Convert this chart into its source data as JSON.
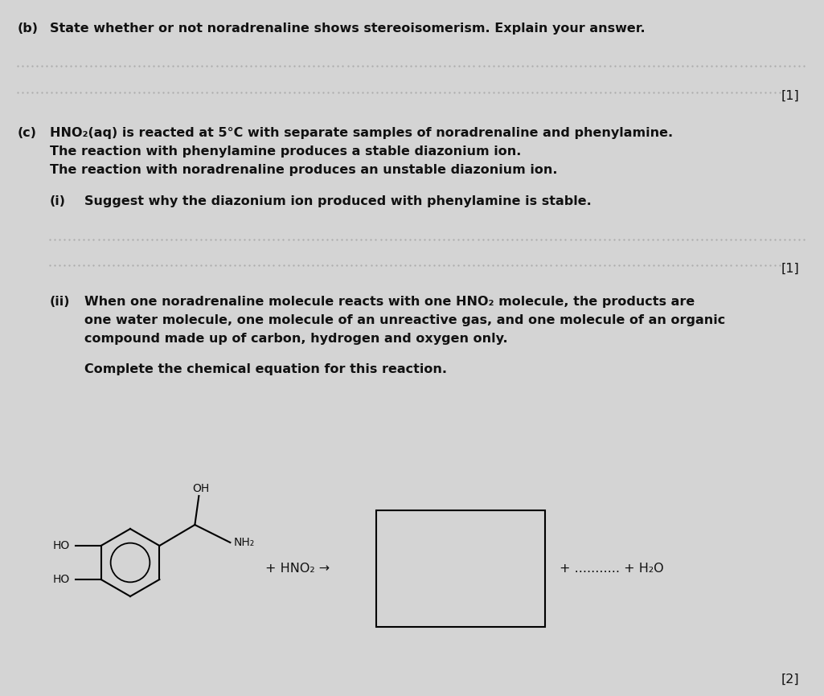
{
  "bg_color": "#d4d4d4",
  "text_color": "#111111",
  "fig_width": 10.25,
  "fig_height": 8.66,
  "dpi": 100,
  "section_b_label": "(b)",
  "section_b_text": "State whether or not noradrenaline shows stereoisomerism. Explain your answer.",
  "mark1_text": "[1]",
  "section_c_label": "(c)",
  "section_c_text1": "HNO₂(aq) is reacted at 5°C with separate samples of noradrenaline and phenylamine.",
  "section_c_text2": "The reaction with phenylamine produces a stable diazonium ion.",
  "section_c_text3": "The reaction with noradrenaline produces an unstable diazonium ion.",
  "section_i_label": "(i)",
  "section_i_text": "Suggest why the diazonium ion produced with phenylamine is stable.",
  "mark1b_text": "[1]",
  "section_ii_label": "(ii)",
  "section_ii_text1": "When one noradrenaline molecule reacts with one HNO₂ molecule, the products are",
  "section_ii_text2": "one water molecule, one molecule of an unreactive gas, and one molecule of an organic",
  "section_ii_text3": "compound made up of carbon, hydrogen and oxygen only.",
  "complete_text": "Complete the chemical equation for this reaction.",
  "plus_hno2_text": "+ HNO₂ →",
  "plus_dots_h2o_text": "+ ........... + H₂O",
  "mark2_text": "[2]",
  "dotted_color": "#aaaaaa",
  "line_color": "#999999"
}
